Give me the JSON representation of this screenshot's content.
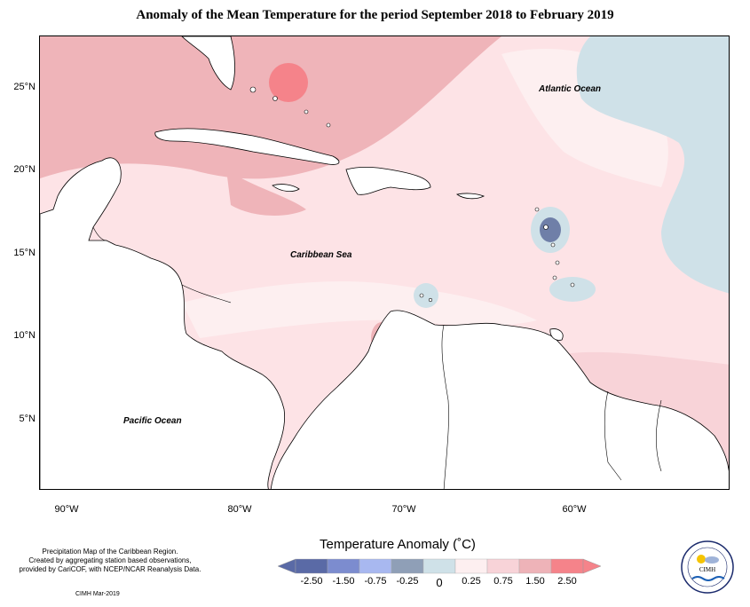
{
  "title": "Anomaly of the Mean Temperature for the period September 2018 to February 2019",
  "map": {
    "region": "Caribbean",
    "labels": {
      "atlantic": "Atlantic Ocean",
      "caribbean": "Caribbean Sea",
      "pacific": "Pacific Ocean"
    },
    "lat_ticks": [
      "25°N",
      "20°N",
      "15°N",
      "10°N",
      "5°N"
    ],
    "lon_ticks": [
      "90°W",
      "80°W",
      "70°W",
      "60°W"
    ]
  },
  "legend": {
    "title": "Temperature Anomaly (˚C)",
    "ticks": [
      "-2.50",
      "-1.50",
      "-0.75",
      "-0.25",
      "0",
      "0.25",
      "0.75",
      "1.50",
      "2.50"
    ],
    "colors": [
      "#5a6aa6",
      "#7c8ccf",
      "#a8b8f0",
      "#8f9fb7",
      "#cfe1e8",
      "#fdeff0",
      "#f8d3d8",
      "#eeb3b8",
      "#f5838a"
    ]
  },
  "credits": {
    "line1": "Precipitation Map of the Caribbean Region.",
    "line2": "Created by aggregating station based observations,",
    "line3": "provided by CariCOF, with NCEP/NCAR Reanalysis Data.",
    "stamp": "CIMH Mar-2019"
  },
  "logo": {
    "text": "CIMH"
  }
}
